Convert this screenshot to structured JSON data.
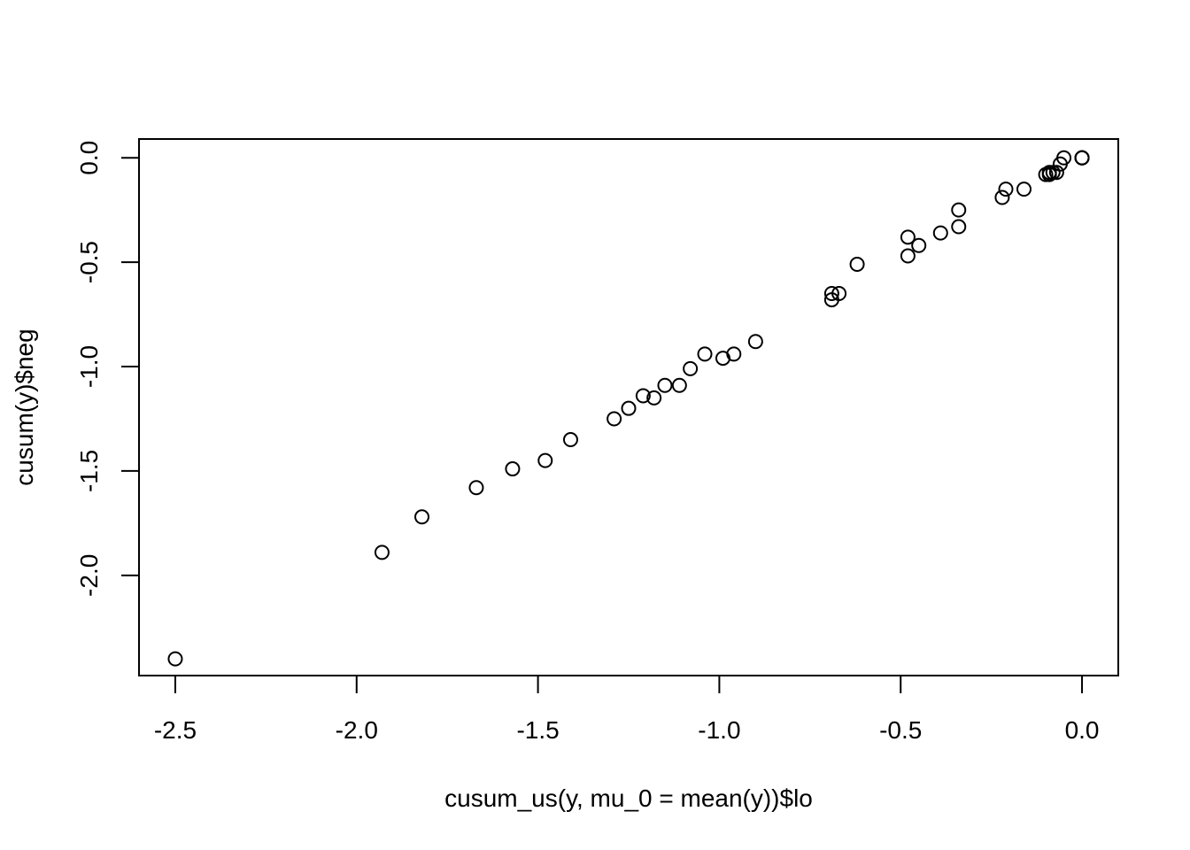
{
  "chart_data": {
    "type": "scatter",
    "title": "",
    "xlabel": "cusum_us(y, mu_0 = mean(y))$lo",
    "ylabel": "cusum(y)$neg",
    "xlim": [
      -2.6,
      0.1
    ],
    "ylim": [
      -2.48,
      0.09
    ],
    "xticks": [
      {
        "value": -2.5,
        "label": "-2.5"
      },
      {
        "value": -2.0,
        "label": "-2.0"
      },
      {
        "value": -1.5,
        "label": "-1.5"
      },
      {
        "value": -1.0,
        "label": "-1.0"
      },
      {
        "value": -0.5,
        "label": "-0.5"
      },
      {
        "value": 0.0,
        "label": "0.0"
      }
    ],
    "yticks": [
      {
        "value": 0.0,
        "label": "0.0"
      },
      {
        "value": -0.5,
        "label": "-0.5"
      },
      {
        "value": -1.0,
        "label": "-1.0"
      },
      {
        "value": -1.5,
        "label": "-1.5"
      },
      {
        "value": -2.0,
        "label": "-2.0"
      }
    ],
    "grid": false,
    "marker": "open-circle",
    "series": [
      {
        "points": [
          {
            "x": -2.5,
            "y": -2.4
          },
          {
            "x": -1.93,
            "y": -1.89
          },
          {
            "x": -1.82,
            "y": -1.72
          },
          {
            "x": -1.67,
            "y": -1.58
          },
          {
            "x": -1.57,
            "y": -1.49
          },
          {
            "x": -1.48,
            "y": -1.45
          },
          {
            "x": -1.41,
            "y": -1.35
          },
          {
            "x": -1.29,
            "y": -1.25
          },
          {
            "x": -1.25,
            "y": -1.2
          },
          {
            "x": -1.21,
            "y": -1.14
          },
          {
            "x": -1.18,
            "y": -1.15
          },
          {
            "x": -1.15,
            "y": -1.09
          },
          {
            "x": -1.11,
            "y": -1.09
          },
          {
            "x": -1.08,
            "y": -1.01
          },
          {
            "x": -1.04,
            "y": -0.94
          },
          {
            "x": -0.99,
            "y": -0.96
          },
          {
            "x": -0.96,
            "y": -0.94
          },
          {
            "x": -0.9,
            "y": -0.88
          },
          {
            "x": -0.69,
            "y": -0.65
          },
          {
            "x": -0.69,
            "y": -0.68
          },
          {
            "x": -0.67,
            "y": -0.65
          },
          {
            "x": -0.62,
            "y": -0.51
          },
          {
            "x": -0.48,
            "y": -0.47
          },
          {
            "x": -0.48,
            "y": -0.38
          },
          {
            "x": -0.45,
            "y": -0.42
          },
          {
            "x": -0.39,
            "y": -0.36
          },
          {
            "x": -0.34,
            "y": -0.33
          },
          {
            "x": -0.34,
            "y": -0.25
          },
          {
            "x": -0.22,
            "y": -0.19
          },
          {
            "x": -0.21,
            "y": -0.15
          },
          {
            "x": -0.16,
            "y": -0.15
          },
          {
            "x": -0.1,
            "y": -0.08
          },
          {
            "x": -0.09,
            "y": -0.08
          },
          {
            "x": -0.09,
            "y": -0.07
          },
          {
            "x": -0.08,
            "y": -0.07
          },
          {
            "x": -0.07,
            "y": -0.07
          },
          {
            "x": -0.06,
            "y": -0.03
          },
          {
            "x": -0.05,
            "y": 0.0
          },
          {
            "x": 0.0,
            "y": 0.0
          },
          {
            "x": 0.0,
            "y": 0.0
          },
          {
            "x": 0.0,
            "y": 0.0
          },
          {
            "x": 0.0,
            "y": 0.0
          }
        ]
      }
    ]
  }
}
